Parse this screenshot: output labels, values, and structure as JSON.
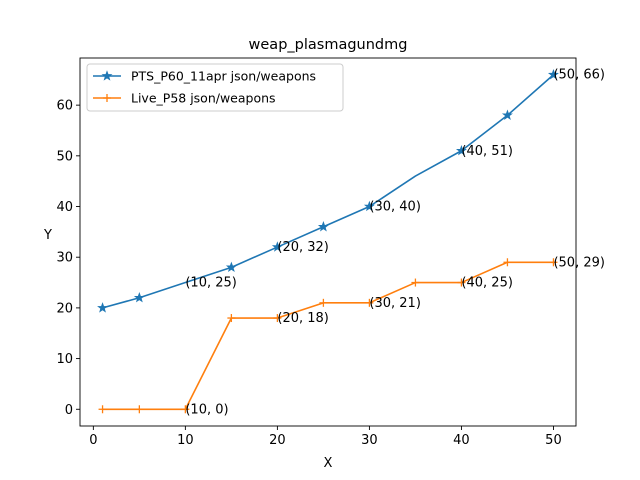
{
  "chart_data": {
    "type": "line",
    "title": "weap_plasmagundmg",
    "xlabel": "X",
    "ylabel": "Y",
    "xlim": [
      -1.45,
      52.45
    ],
    "ylim": [
      -3.3,
      69.3
    ],
    "xticks": [
      0,
      10,
      20,
      30,
      40,
      50
    ],
    "yticks": [
      0,
      10,
      20,
      30,
      40,
      50,
      60
    ],
    "grid": false,
    "legend_position": "top-left",
    "series": [
      {
        "name": "PTS_P60_11apr json/weapons",
        "color": "#1f77b4",
        "marker": "star",
        "x": [
          1,
          5,
          10,
          15,
          20,
          25,
          30,
          35,
          40,
          45,
          50
        ],
        "y": [
          20,
          22,
          25,
          28,
          32,
          36,
          40,
          46,
          51,
          58,
          66
        ],
        "marker_x": [
          1,
          5,
          15,
          20,
          25,
          30,
          40,
          45,
          50
        ]
      },
      {
        "name": "Live_P58 json/weapons",
        "color": "#ff7f0e",
        "marker": "plus",
        "x": [
          1,
          5,
          10,
          15,
          20,
          25,
          30,
          35,
          40,
          45,
          50
        ],
        "y": [
          0,
          0,
          0,
          18,
          18,
          21,
          21,
          25,
          25,
          29,
          29
        ]
      }
    ],
    "annotations": [
      {
        "text": "(10, 25)",
        "x": 10,
        "y": 25
      },
      {
        "text": "(20, 32)",
        "x": 20,
        "y": 32
      },
      {
        "text": "(30, 40)",
        "x": 30,
        "y": 40
      },
      {
        "text": "(40, 51)",
        "x": 40,
        "y": 51
      },
      {
        "text": "(50, 66)",
        "x": 50,
        "y": 66
      },
      {
        "text": "(10, 0)",
        "x": 10,
        "y": 0
      },
      {
        "text": "(20, 18)",
        "x": 20,
        "y": 18
      },
      {
        "text": "(30, 21)",
        "x": 30,
        "y": 21
      },
      {
        "text": "(40, 25)",
        "x": 40,
        "y": 25
      },
      {
        "text": "(50, 29)",
        "x": 50,
        "y": 29
      }
    ]
  }
}
